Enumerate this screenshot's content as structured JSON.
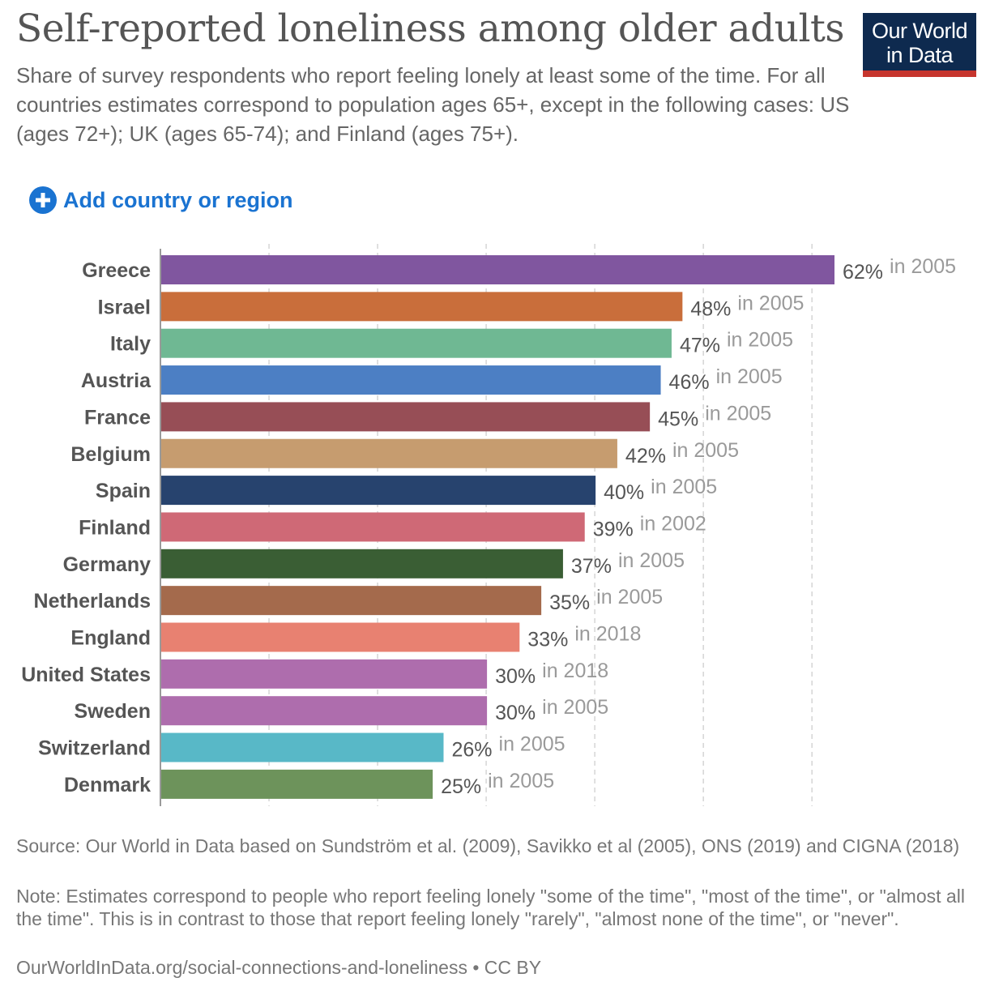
{
  "header": {
    "title": "Self-reported loneliness among older adults",
    "subtitle": "Share of survey respondents who report feeling lonely at least some of the time. For all countries estimates correspond to population ages 65+, except in the following cases: US (ages 72+); UK (ages 65-74); and Finland (ages 75+).",
    "logo_line1": "Our World",
    "logo_line2": "in Data"
  },
  "controls": {
    "add_country_label": "Add country or region",
    "add_icon": "plus-circle-icon"
  },
  "colors": {
    "logo_bg": "#0e2a4f",
    "logo_accent": "#c6352d",
    "link": "#1a73d1"
  },
  "chart_data": {
    "type": "bar",
    "orientation": "horizontal",
    "unit": "%",
    "xlim": [
      0,
      62
    ],
    "grid": "vertical-dashed",
    "categories": [
      "Greece",
      "Israel",
      "Italy",
      "Austria",
      "France",
      "Belgium",
      "Spain",
      "Finland",
      "Germany",
      "Netherlands",
      "England",
      "United States",
      "Sweden",
      "Switzerland",
      "Denmark"
    ],
    "values": [
      62,
      48,
      47,
      46,
      45,
      42,
      40,
      39,
      37,
      35,
      33,
      30,
      30,
      26,
      25
    ],
    "value_labels": [
      "62%",
      "48%",
      "47%",
      "46%",
      "45%",
      "42%",
      "40%",
      "39%",
      "37%",
      "35%",
      "33%",
      "30%",
      "30%",
      "26%",
      "25%"
    ],
    "year_labels": [
      "in 2005",
      "in 2005",
      "in 2005",
      "in 2005",
      "in 2005",
      "in 2005",
      "in 2005",
      "in 2002",
      "in 2005",
      "in 2005",
      "in 2018",
      "in 2018",
      "in 2005",
      "in 2005",
      "in 2005"
    ],
    "colors": [
      "#80569f",
      "#c96e3b",
      "#6fb893",
      "#4c7fc4",
      "#974e56",
      "#c69c6f",
      "#27436e",
      "#cf6976",
      "#3a5e34",
      "#a46a4c",
      "#e88171",
      "#ae6dad",
      "#ae6dad",
      "#58b8c7",
      "#6d935b"
    ]
  },
  "footer": {
    "source": "Source: Our World in Data based on Sundström et al. (2009), Savikko et al (2005), ONS (2019) and CIGNA (2018)",
    "note": "Note: Estimates correspond to people who report feeling lonely \"some of the time\", \"most of the time\", or \"almost all the time\". This is in contrast to those that report feeling lonely \"rarely\", \"almost none of the time\", or \"never\".",
    "url_line": "OurWorldInData.org/social-connections-and-loneliness • CC BY"
  }
}
